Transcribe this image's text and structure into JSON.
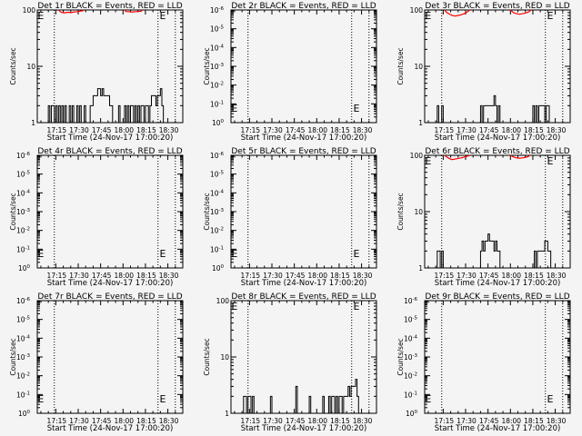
{
  "colors": {
    "events": "#000000",
    "lld": "#ff0000",
    "background": "#f4f4f4"
  },
  "chart_data": {
    "type": "line",
    "common": {
      "xlabel": "Start Time (24-Nov-17 17:00:20)",
      "ylabel": "Counts/sec",
      "x_units": "minutes after 17:00",
      "xlim": [
        2.6,
        100
      ],
      "x_ticks": [
        15,
        30,
        45,
        60,
        75,
        90
      ],
      "x_tick_labels": [
        "17:15",
        "17:30",
        "17:45",
        "18:00",
        "18:15",
        "18:30"
      ],
      "dotted_lines_x": [
        14,
        83.4,
        95
      ],
      "event_markers": [
        {
          "label": "E",
          "x": 2.8
        },
        {
          "label": "E",
          "x": 84.5
        }
      ],
      "series_x_start": 10
    },
    "panels": [
      {
        "title": "Det 1r BLACK = Events, RED = LLD",
        "scale": "data",
        "ylim": [
          1,
          100
        ],
        "y_tick_labels": [
          "1",
          "10",
          "100"
        ],
        "events": [
          2,
          1,
          2,
          2,
          1,
          2,
          1,
          2,
          1,
          2,
          1,
          2,
          1,
          1,
          2,
          1,
          2,
          1,
          1,
          2,
          1,
          2,
          1,
          1,
          2,
          1,
          1,
          1,
          2,
          2,
          3,
          3,
          3,
          4,
          4,
          3,
          4,
          3,
          3,
          3,
          3,
          2,
          2,
          1,
          1,
          1,
          1,
          2,
          1,
          1,
          1,
          2,
          1,
          2,
          1,
          2,
          2,
          1,
          2,
          1,
          2,
          1,
          2,
          2,
          1,
          2,
          2,
          1,
          2,
          3,
          3,
          3,
          2,
          3,
          3,
          4,
          2,
          1
        ],
        "lld": [
          [
            [
              17,
              100
            ],
            [
              18,
              93
            ],
            [
              19,
              90
            ],
            [
              21,
              89
            ],
            [
              23,
              91
            ],
            [
              25,
              90
            ],
            [
              27,
              92
            ],
            [
              29,
              93
            ],
            [
              31,
              95
            ],
            [
              33,
              97
            ],
            [
              34,
              100
            ]
          ],
          [
            [
              61,
              100
            ],
            [
              62,
              94
            ],
            [
              64,
              93
            ],
            [
              66,
              92
            ],
            [
              68,
              93
            ],
            [
              70,
              94
            ],
            [
              72,
              95
            ],
            [
              73,
              100
            ]
          ]
        ]
      },
      {
        "title": "Det 2r BLACK = Events, RED = LLD",
        "scale": "empty",
        "y_tick_labels": [
          [
            "10",
            "-6"
          ],
          [
            "10",
            "-5"
          ],
          [
            "10",
            "-4"
          ],
          [
            "10",
            "-3"
          ],
          [
            "10",
            "-2"
          ],
          [
            "10",
            "-1"
          ],
          [
            "10",
            "0"
          ]
        ]
      },
      {
        "title": "Det 3r BLACK = Events, RED = LLD",
        "scale": "data",
        "ylim": [
          1,
          100
        ],
        "y_tick_labels": [
          "1",
          "10",
          "100"
        ],
        "events": [
          1,
          2,
          1,
          1,
          2,
          1,
          1,
          1,
          1,
          1,
          1,
          1,
          1,
          1,
          1,
          1,
          1,
          1,
          1,
          1,
          1,
          1,
          1,
          1,
          1,
          1,
          1,
          1,
          1,
          1,
          2,
          1,
          2,
          2,
          2,
          2,
          2,
          2,
          2,
          3,
          2,
          1,
          2,
          1,
          1,
          1,
          1,
          1,
          1,
          1,
          1,
          1,
          1,
          1,
          1,
          1,
          1,
          1,
          1,
          1,
          1,
          1,
          1,
          1,
          1,
          2,
          1,
          2,
          1,
          2,
          2,
          2,
          2,
          1,
          2,
          2,
          1,
          1
        ],
        "lld": [
          [
            [
              16,
              100
            ],
            [
              17,
              92
            ],
            [
              19,
              85
            ],
            [
              21,
              80
            ],
            [
              23,
              78
            ],
            [
              25,
              80
            ],
            [
              27,
              82
            ],
            [
              29,
              86
            ],
            [
              31,
              92
            ],
            [
              33,
              100
            ]
          ],
          [
            [
              60,
              100
            ],
            [
              62,
              90
            ],
            [
              64,
              86
            ],
            [
              66,
              84
            ],
            [
              68,
              86
            ],
            [
              70,
              88
            ],
            [
              72,
              92
            ],
            [
              74,
              100
            ]
          ]
        ]
      },
      {
        "title": "Det 4r BLACK = Events, RED = LLD",
        "scale": "empty",
        "y_tick_labels": [
          [
            "10",
            "-6"
          ],
          [
            "10",
            "-5"
          ],
          [
            "10",
            "-4"
          ],
          [
            "10",
            "-3"
          ],
          [
            "10",
            "-2"
          ],
          [
            "10",
            "-1"
          ],
          [
            "10",
            "0"
          ]
        ]
      },
      {
        "title": "Det 5r BLACK = Events, RED = LLD",
        "scale": "empty",
        "y_tick_labels": [
          [
            "10",
            "-6"
          ],
          [
            "10",
            "-5"
          ],
          [
            "10",
            "-4"
          ],
          [
            "10",
            "-3"
          ],
          [
            "10",
            "-2"
          ],
          [
            "10",
            "-1"
          ],
          [
            "10",
            "0"
          ]
        ]
      },
      {
        "title": "Det 6r BLACK = Events, RED = LLD",
        "scale": "data",
        "ylim": [
          1,
          100
        ],
        "y_tick_labels": [
          "1",
          "10",
          "100"
        ],
        "events": [
          1,
          2,
          2,
          1,
          2,
          1,
          1,
          1,
          1,
          1,
          1,
          1,
          1,
          1,
          1,
          1,
          1,
          1,
          1,
          1,
          1,
          1,
          1,
          1,
          1,
          1,
          1,
          1,
          1,
          1,
          2,
          3,
          2,
          3,
          3,
          4,
          3,
          3,
          3,
          2,
          3,
          2,
          2,
          1,
          1,
          1,
          1,
          1,
          1,
          1,
          1,
          1,
          1,
          1,
          1,
          1,
          1,
          1,
          1,
          1,
          1,
          1,
          1,
          1,
          1,
          1,
          2,
          1,
          2,
          2,
          2,
          2,
          2,
          3,
          3,
          2,
          2,
          1
        ],
        "lld": [
          [
            [
              16,
              100
            ],
            [
              17,
              95
            ],
            [
              19,
              88
            ],
            [
              21,
              84
            ],
            [
              23,
              86
            ],
            [
              25,
              88
            ],
            [
              27,
              90
            ],
            [
              29,
              93
            ],
            [
              31,
              96
            ],
            [
              33,
              100
            ]
          ],
          [
            [
              60,
              100
            ],
            [
              62,
              94
            ],
            [
              64,
              90
            ],
            [
              66,
              89
            ],
            [
              68,
              90
            ],
            [
              70,
              92
            ],
            [
              72,
              95
            ],
            [
              73,
              100
            ]
          ]
        ]
      },
      {
        "title": "Det 7r BLACK = Events, RED = LLD",
        "scale": "empty",
        "y_tick_labels": [
          [
            "10",
            "-6"
          ],
          [
            "10",
            "-5"
          ],
          [
            "10",
            "-4"
          ],
          [
            "10",
            "-3"
          ],
          [
            "10",
            "-2"
          ],
          [
            "10",
            "-1"
          ],
          [
            "10",
            "0"
          ]
        ]
      },
      {
        "title": "Det 8r BLACK = Events, RED = LLD",
        "scale": "data",
        "ylim": [
          1,
          100
        ],
        "y_tick_labels": [
          "1",
          "10",
          "100"
        ],
        "events": [
          1,
          2,
          2,
          1,
          2,
          2,
          1,
          2,
          1,
          1,
          1,
          1,
          1,
          1,
          1,
          1,
          1,
          1,
          1,
          2,
          1,
          1,
          1,
          1,
          1,
          1,
          1,
          1,
          1,
          1,
          1,
          1,
          1,
          1,
          1,
          1,
          3,
          1,
          1,
          1,
          1,
          1,
          1,
          1,
          1,
          2,
          1,
          1,
          1,
          1,
          1,
          1,
          1,
          1,
          2,
          1,
          1,
          1,
          2,
          1,
          2,
          2,
          1,
          2,
          1,
          2,
          2,
          1,
          2,
          2,
          2,
          3,
          2,
          3,
          3,
          3,
          4,
          2
        ],
        "lld": []
      },
      {
        "title": "Det 9r BLACK = Events, RED = LLD",
        "scale": "empty",
        "y_tick_labels": [
          [
            "10",
            "-6"
          ],
          [
            "10",
            "-5"
          ],
          [
            "10",
            "-4"
          ],
          [
            "10",
            "-3"
          ],
          [
            "10",
            "-2"
          ],
          [
            "10",
            "-1"
          ],
          [
            "10",
            "0"
          ]
        ]
      }
    ]
  }
}
